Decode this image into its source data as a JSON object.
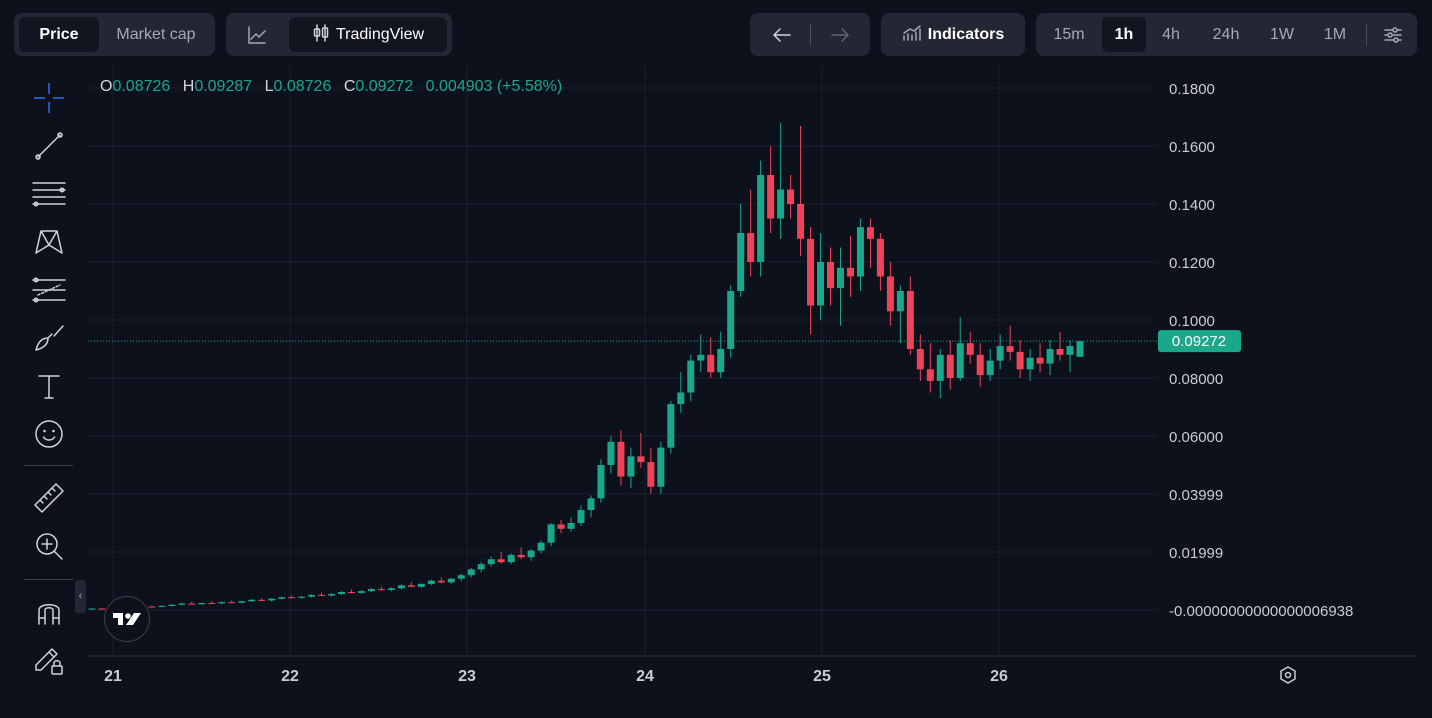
{
  "tabs_left": {
    "price": "Price",
    "market_cap": "Market cap"
  },
  "tabs_chart": {
    "tradingview": "TradingView",
    "line_chart_icon": "line-chart-icon",
    "candles_icon": "candlestick-icon"
  },
  "nav": {
    "back_icon": "arrow-left-icon",
    "forward_icon": "arrow-right-icon"
  },
  "indicators": {
    "label": "Indicators",
    "icon": "indicators-icon"
  },
  "intervals": {
    "items": [
      "15m",
      "1h",
      "4h",
      "24h",
      "1W",
      "1M"
    ],
    "selected": "1h",
    "settings_icon": "settings-sliders-icon"
  },
  "ohlc": {
    "o_label": "O",
    "o_value": "0.08726",
    "h_label": "H",
    "h_value": "0.09287",
    "l_label": "L",
    "l_value": "0.08726",
    "c_label": "C",
    "c_value": "0.09272",
    "change": "0.004903 (+5.58%)"
  },
  "tools": [
    "crosshair-icon",
    "trend-line-icon",
    "fib-lines-icon",
    "pattern-icon",
    "measure-lines-icon",
    "brush-icon",
    "text-tool-icon",
    "emoji-icon",
    "ruler-icon",
    "zoom-in-icon",
    "magnet-icon",
    "lock-drawings-icon"
  ],
  "colors": {
    "up": "#1aa88b",
    "down": "#f0435a",
    "bg": "#0d111c",
    "price_tag": "#1aa88b"
  },
  "chart_data": {
    "type": "candlestick",
    "x_ticks": [
      "21",
      "22",
      "23",
      "24",
      "25",
      "26"
    ],
    "y_ticks": [
      "0.1800",
      "0.1600",
      "0.1400",
      "0.1200",
      "0.1000",
      "0.08000",
      "0.06000",
      "0.03999",
      "0.01999",
      "-0.00000000000000006938"
    ],
    "ylim": [
      -0.005,
      0.19
    ],
    "last_price": "0.09272",
    "last_price_value": 0.09272,
    "grid": true,
    "candles": [
      [
        0.0003,
        0.0006,
        0.0002,
        0.0005
      ],
      [
        0.0005,
        0.0008,
        0.0003,
        0.0004
      ],
      [
        0.0004,
        0.0009,
        0.0003,
        0.0007
      ],
      [
        0.0007,
        0.001,
        0.0005,
        0.0006
      ],
      [
        0.0006,
        0.0011,
        0.0005,
        0.0009
      ],
      [
        0.0009,
        0.0013,
        0.0007,
        0.0012
      ],
      [
        0.0012,
        0.0015,
        0.0009,
        0.0011
      ],
      [
        0.0011,
        0.0016,
        0.001,
        0.0014
      ],
      [
        0.0014,
        0.002,
        0.0012,
        0.0018
      ],
      [
        0.0018,
        0.0025,
        0.0016,
        0.0022
      ],
      [
        0.0022,
        0.0028,
        0.0019,
        0.002
      ],
      [
        0.002,
        0.0026,
        0.0018,
        0.0024
      ],
      [
        0.0024,
        0.003,
        0.0021,
        0.0023
      ],
      [
        0.0023,
        0.0029,
        0.002,
        0.0027
      ],
      [
        0.0027,
        0.0033,
        0.0024,
        0.0025
      ],
      [
        0.0025,
        0.0032,
        0.0023,
        0.003
      ],
      [
        0.003,
        0.0038,
        0.0028,
        0.0035
      ],
      [
        0.0035,
        0.004,
        0.0031,
        0.0033
      ],
      [
        0.0033,
        0.0041,
        0.003,
        0.0039
      ],
      [
        0.0039,
        0.0046,
        0.0036,
        0.0044
      ],
      [
        0.0044,
        0.005,
        0.004,
        0.0042
      ],
      [
        0.0042,
        0.0048,
        0.0039,
        0.0046
      ],
      [
        0.0046,
        0.0055,
        0.0043,
        0.0052
      ],
      [
        0.0052,
        0.006,
        0.0048,
        0.005
      ],
      [
        0.005,
        0.0058,
        0.0047,
        0.0055
      ],
      [
        0.0055,
        0.0065,
        0.0052,
        0.0062
      ],
      [
        0.0062,
        0.007,
        0.0057,
        0.0059
      ],
      [
        0.0059,
        0.0068,
        0.0056,
        0.0065
      ],
      [
        0.0065,
        0.0076,
        0.0061,
        0.0072
      ],
      [
        0.0072,
        0.008,
        0.0066,
        0.0069
      ],
      [
        0.0069,
        0.0078,
        0.0065,
        0.0075
      ],
      [
        0.0075,
        0.0088,
        0.0071,
        0.0085
      ],
      [
        0.0085,
        0.0096,
        0.0079,
        0.008
      ],
      [
        0.008,
        0.0092,
        0.0076,
        0.009
      ],
      [
        0.009,
        0.0105,
        0.0085,
        0.0101
      ],
      [
        0.0101,
        0.0112,
        0.0092,
        0.0095
      ],
      [
        0.0095,
        0.011,
        0.009,
        0.0108
      ],
      [
        0.0108,
        0.0125,
        0.01,
        0.012
      ],
      [
        0.012,
        0.0145,
        0.0112,
        0.014
      ],
      [
        0.014,
        0.0165,
        0.013,
        0.0158
      ],
      [
        0.0158,
        0.0185,
        0.015,
        0.0175
      ],
      [
        0.0175,
        0.02,
        0.016,
        0.0165
      ],
      [
        0.0165,
        0.0195,
        0.0158,
        0.019
      ],
      [
        0.019,
        0.0215,
        0.0175,
        0.0182
      ],
      [
        0.0182,
        0.021,
        0.017,
        0.0205
      ],
      [
        0.0205,
        0.024,
        0.0195,
        0.0232
      ],
      [
        0.0232,
        0.03,
        0.022,
        0.0295
      ],
      [
        0.0295,
        0.031,
        0.0265,
        0.028
      ],
      [
        0.028,
        0.032,
        0.027,
        0.03
      ],
      [
        0.03,
        0.036,
        0.029,
        0.0345
      ],
      [
        0.0345,
        0.0395,
        0.032,
        0.0385
      ],
      [
        0.0385,
        0.052,
        0.037,
        0.05
      ],
      [
        0.05,
        0.06,
        0.047,
        0.058
      ],
      [
        0.058,
        0.062,
        0.043,
        0.046
      ],
      [
        0.046,
        0.056,
        0.042,
        0.053
      ],
      [
        0.053,
        0.061,
        0.049,
        0.051
      ],
      [
        0.051,
        0.056,
        0.04,
        0.0425
      ],
      [
        0.0425,
        0.058,
        0.04,
        0.056
      ],
      [
        0.056,
        0.072,
        0.054,
        0.071
      ],
      [
        0.071,
        0.082,
        0.068,
        0.075
      ],
      [
        0.075,
        0.088,
        0.072,
        0.086
      ],
      [
        0.086,
        0.095,
        0.082,
        0.088
      ],
      [
        0.088,
        0.094,
        0.08,
        0.082
      ],
      [
        0.082,
        0.096,
        0.08,
        0.09
      ],
      [
        0.09,
        0.112,
        0.087,
        0.11
      ],
      [
        0.11,
        0.14,
        0.108,
        0.13
      ],
      [
        0.13,
        0.145,
        0.115,
        0.12
      ],
      [
        0.12,
        0.155,
        0.115,
        0.15
      ],
      [
        0.15,
        0.16,
        0.13,
        0.135
      ],
      [
        0.135,
        0.168,
        0.128,
        0.145
      ],
      [
        0.145,
        0.15,
        0.135,
        0.14
      ],
      [
        0.14,
        0.167,
        0.122,
        0.128
      ],
      [
        0.128,
        0.132,
        0.095,
        0.105
      ],
      [
        0.105,
        0.13,
        0.1,
        0.12
      ],
      [
        0.12,
        0.125,
        0.105,
        0.111
      ],
      [
        0.111,
        0.125,
        0.098,
        0.118
      ],
      [
        0.118,
        0.129,
        0.108,
        0.115
      ],
      [
        0.115,
        0.135,
        0.11,
        0.132
      ],
      [
        0.132,
        0.135,
        0.118,
        0.128
      ],
      [
        0.128,
        0.13,
        0.11,
        0.115
      ],
      [
        0.115,
        0.12,
        0.098,
        0.103
      ],
      [
        0.103,
        0.112,
        0.092,
        0.11
      ],
      [
        0.11,
        0.115,
        0.088,
        0.09
      ],
      [
        0.09,
        0.095,
        0.079,
        0.083
      ],
      [
        0.083,
        0.092,
        0.075,
        0.079
      ],
      [
        0.079,
        0.09,
        0.073,
        0.088
      ],
      [
        0.088,
        0.093,
        0.076,
        0.08
      ],
      [
        0.08,
        0.101,
        0.079,
        0.092
      ],
      [
        0.092,
        0.096,
        0.085,
        0.088
      ],
      [
        0.088,
        0.092,
        0.077,
        0.081
      ],
      [
        0.081,
        0.09,
        0.079,
        0.086
      ],
      [
        0.086,
        0.095,
        0.083,
        0.091
      ],
      [
        0.091,
        0.098,
        0.086,
        0.089
      ],
      [
        0.089,
        0.093,
        0.08,
        0.083
      ],
      [
        0.083,
        0.09,
        0.079,
        0.087
      ],
      [
        0.087,
        0.092,
        0.082,
        0.085
      ],
      [
        0.085,
        0.093,
        0.081,
        0.09
      ],
      [
        0.09,
        0.096,
        0.086,
        0.088
      ],
      [
        0.088,
        0.093,
        0.082,
        0.091
      ],
      [
        0.0873,
        0.0929,
        0.0873,
        0.0927
      ]
    ]
  }
}
